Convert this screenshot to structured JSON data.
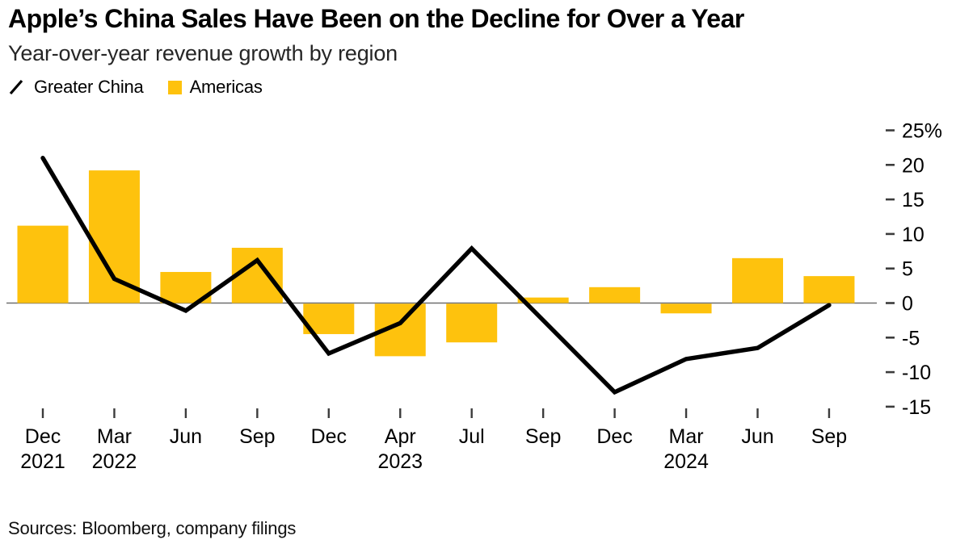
{
  "header": {
    "title": "Apple’s China Sales Have Been on the Decline for Over a Year",
    "subtitle": "Year-over-year revenue growth by region"
  },
  "legend": [
    {
      "label": "Greater China",
      "marker": "diagonal-line"
    },
    {
      "label": "Americas",
      "marker": "square"
    }
  ],
  "footer": {
    "source": "Sources: Bloomberg, company filings"
  },
  "colors": {
    "americas_bar": "#FEC20D",
    "china_line": "#000000",
    "zero_axis": "#6F6F6F",
    "tick": "#3C3C3C",
    "text": "#000000"
  },
  "chart_data": {
    "type": "bar+line",
    "title": "Apple’s China Sales Have Been on the Decline for Over a Year",
    "subtitle": "Year-over-year revenue growth by region",
    "x": [
      {
        "month": "Dec",
        "year": "2021"
      },
      {
        "month": "Mar",
        "year": "2022"
      },
      {
        "month": "Jun"
      },
      {
        "month": "Sep"
      },
      {
        "month": "Dec"
      },
      {
        "month": "Apr",
        "year": "2023"
      },
      {
        "month": "Jul"
      },
      {
        "month": "Sep"
      },
      {
        "month": "Dec"
      },
      {
        "month": "Mar",
        "year": "2024"
      },
      {
        "month": "Jun"
      },
      {
        "month": "Sep"
      }
    ],
    "series": [
      {
        "name": "Americas",
        "type": "bar",
        "color": "#FEC20D",
        "values": [
          11.2,
          19.2,
          4.5,
          8.0,
          -4.4,
          -7.6,
          -5.6,
          0.8,
          2.3,
          -1.4,
          6.5,
          3.9
        ]
      },
      {
        "name": "Greater China",
        "type": "line",
        "color": "#000000",
        "values": [
          21.0,
          3.5,
          -1.1,
          6.2,
          -7.3,
          -2.9,
          7.9,
          -2.5,
          -12.9,
          -8.1,
          -6.5,
          -0.3
        ]
      }
    ],
    "y_axis": {
      "side": "right",
      "ticks": [
        25,
        20,
        15,
        10,
        5,
        0,
        -5,
        -10,
        -15
      ],
      "unit_suffix_on_first_tick": "%"
    },
    "ylim": [
      -15,
      25
    ],
    "grid": false,
    "legend_position": "top-left"
  }
}
